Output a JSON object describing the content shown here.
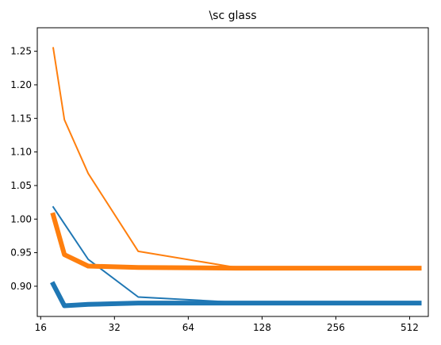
{
  "chart_data": {
    "type": "line",
    "title": "\\sc glass",
    "xlabel": "",
    "ylabel": "",
    "x_scale": "log2",
    "xlim": [
      15.5,
      610
    ],
    "ylim": [
      0.855,
      1.285
    ],
    "grid": false,
    "x_ticks": [
      16,
      32,
      64,
      128,
      256,
      512
    ],
    "x_tick_labels": [
      "16",
      "32",
      "64",
      "128",
      "256",
      "512"
    ],
    "y_ticks": [
      0.9,
      0.95,
      1.0,
      1.05,
      1.1,
      1.15,
      1.2,
      1.25
    ],
    "y_tick_labels": [
      "0.90",
      "0.95",
      "1.00",
      "1.05",
      "1.10",
      "1.15",
      "1.20",
      "1.25"
    ],
    "series": [
      {
        "color": "#ff7f0e",
        "style": "thin",
        "x": [
          18,
          20,
          25,
          40,
          100,
          560
        ],
        "y": [
          1.255,
          1.148,
          1.068,
          0.952,
          0.928,
          0.927
        ]
      },
      {
        "color": "#1f77b4",
        "style": "thin",
        "x": [
          18,
          20,
          25,
          40,
          100,
          560
        ],
        "y": [
          1.018,
          0.993,
          0.94,
          0.884,
          0.876,
          0.876
        ]
      },
      {
        "color": "#ff7f0e",
        "style": "thick",
        "x": [
          18,
          20,
          25,
          40,
          100,
          560
        ],
        "y": [
          1.006,
          0.947,
          0.93,
          0.928,
          0.927,
          0.927
        ]
      },
      {
        "color": "#1f77b4",
        "style": "thick",
        "x": [
          18,
          20,
          25,
          40,
          100,
          560
        ],
        "y": [
          0.903,
          0.871,
          0.873,
          0.875,
          0.875,
          0.875
        ]
      }
    ]
  }
}
